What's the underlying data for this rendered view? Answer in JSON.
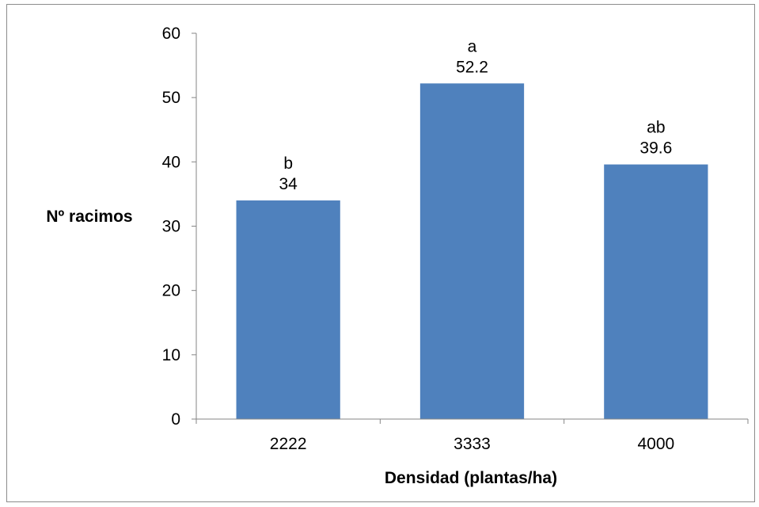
{
  "chart_data": {
    "type": "bar",
    "categories": [
      "2222",
      "3333",
      "4000"
    ],
    "values": [
      34,
      52.2,
      39.6
    ],
    "significance_letters": [
      "b",
      "a",
      "ab"
    ],
    "value_labels": [
      "34",
      "52.2",
      "39.6"
    ],
    "title": "",
    "xlabel": "Densidad (plantas/ha)",
    "ylabel": "Nº racimos",
    "ylim": [
      0,
      60
    ],
    "yticks": [
      0,
      10,
      20,
      30,
      40,
      50,
      60
    ],
    "ytick_labels": [
      "0",
      "10",
      "20",
      "30",
      "40",
      "50",
      "60"
    ],
    "grid": false,
    "legend": "none",
    "bar_color": "#4f81bd"
  }
}
